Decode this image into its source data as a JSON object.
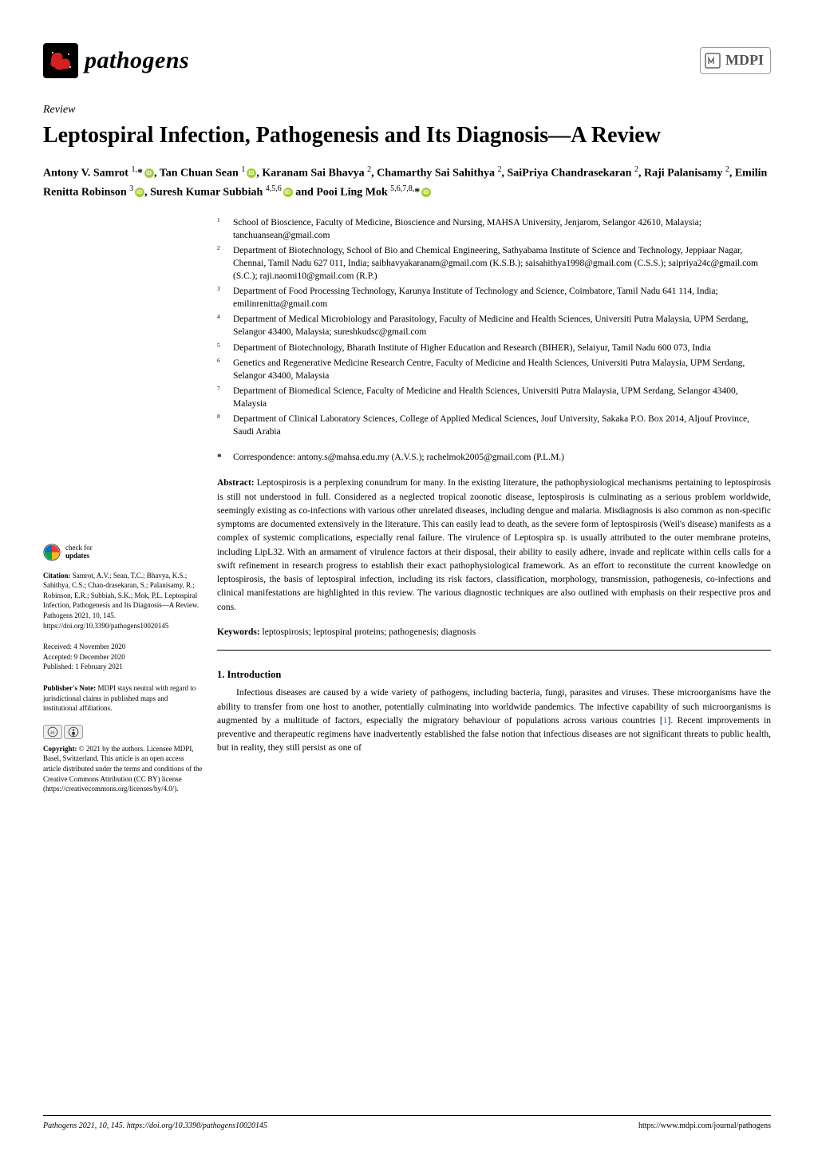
{
  "journal": {
    "name": "pathogens",
    "publisher": "MDPI"
  },
  "article": {
    "type": "Review",
    "title": "Leptospiral Infection, Pathogenesis and Its Diagnosis—A Review",
    "authors_html": "Antony V. Samrot <sup>1,</sup>*<span class='orcid'></span>, Tan Chuan Sean <sup>1</sup><span class='orcid'></span>, Karanam Sai Bhavya <sup>2</sup>, Chamarthy Sai Sahithya <sup>2</sup>, SaiPriya Chandrasekaran <sup>2</sup>, Raji Palanisamy <sup>2</sup>, Emilin Renitta Robinson <sup>3</sup><span class='orcid'></span>, Suresh Kumar Subbiah <sup>4,5,6</sup><span class='orcid'></span> and Pooi Ling Mok <sup>5,6,7,8,</sup>*<span class='orcid'></span>"
  },
  "affiliations": [
    {
      "num": "1",
      "text": "School of Bioscience, Faculty of Medicine, Bioscience and Nursing, MAHSA University, Jenjarom, Selangor 42610, Malaysia; tanchuansean@gmail.com"
    },
    {
      "num": "2",
      "text": "Department of Biotechnology, School of Bio and Chemical Engineering, Sathyabama Institute of Science and Technology, Jeppiaar Nagar, Chennai, Tamil Nadu 627 011, India; saibhavyakaranam@gmail.com (K.S.B.); saisahithya1998@gmail.com (C.S.S.); saipriya24c@gmail.com (S.C.); raji.naomi10@gmail.com (R.P.)"
    },
    {
      "num": "3",
      "text": "Department of Food Processing Technology, Karunya Institute of Technology and Science, Coimbatore, Tamil Nadu 641 114, India; emilinrenitta@gmail.com"
    },
    {
      "num": "4",
      "text": "Department of Medical Microbiology and Parasitology, Faculty of Medicine and Health Sciences, Universiti Putra Malaysia, UPM Serdang, Selangor 43400, Malaysia; sureshkudsc@gmail.com"
    },
    {
      "num": "5",
      "text": "Department of Biotechnology, Bharath Institute of Higher Education and Research (BIHER), Selaiyur, Tamil Nadu 600 073, India"
    },
    {
      "num": "6",
      "text": "Genetics and Regenerative Medicine Research Centre, Faculty of Medicine and Health Sciences, Universiti Putra Malaysia, UPM Serdang, Selangor 43400, Malaysia"
    },
    {
      "num": "7",
      "text": "Department of Biomedical Science, Faculty of Medicine and Health Sciences, Universiti Putra Malaysia, UPM Serdang, Selangor 43400, Malaysia"
    },
    {
      "num": "8",
      "text": "Department of Clinical Laboratory Sciences, College of Applied Medical Sciences, Jouf University, Sakaka P.O. Box 2014, Aljouf Province, Saudi Arabia"
    }
  ],
  "correspondence": "Correspondence: antony.s@mahsa.edu.my (A.V.S.); rachelmok2005@gmail.com (P.L.M.)",
  "abstract": {
    "label": "Abstract:",
    "text": "Leptospirosis is a perplexing conundrum for many. In the existing literature, the pathophysiological mechanisms pertaining to leptospirosis is still not understood in full. Considered as a neglected tropical zoonotic disease, leptospirosis is culminating as a serious problem worldwide, seemingly existing as co-infections with various other unrelated diseases, including dengue and malaria. Misdiagnosis is also common as non-specific symptoms are documented extensively in the literature. This can easily lead to death, as the severe form of leptospirosis (Weil's disease) manifests as a complex of systemic complications, especially renal failure. The virulence of Leptospira sp. is usually attributed to the outer membrane proteins, including LipL32. With an armament of virulence factors at their disposal, their ability to easily adhere, invade and replicate within cells calls for a swift refinement in research progress to establish their exact pathophysiological framework. As an effort to reconstitute the current knowledge on leptospirosis, the basis of leptospiral infection, including its risk factors, classification, morphology, transmission, pathogenesis, co-infections and clinical manifestations are highlighted in this review. The various diagnostic techniques are also outlined with emphasis on their respective pros and cons."
  },
  "keywords": {
    "label": "Keywords:",
    "text": "leptospirosis; leptospiral proteins; pathogenesis; diagnosis"
  },
  "section1": {
    "heading": "1. Introduction",
    "para": "Infectious diseases are caused by a wide variety of pathogens, including bacteria, fungi, parasites and viruses. These microorganisms have the ability to transfer from one host to another, potentially culminating into worldwide pandemics. The infective capability of such microorganisms is augmented by a multitude of factors, especially the migratory behaviour of populations across various countries [1]. Recent improvements in preventive and therapeutic regimens have inadvertently established the false notion that infectious diseases are not significant threats to public health, but in reality, they still persist as one of"
  },
  "sidebar": {
    "check_updates": {
      "line1": "check for",
      "line2": "updates"
    },
    "citation": {
      "label": "Citation:",
      "text": "Samrot, A.V.; Sean, T.C.; Bhavya, K.S.; Sahithya, C.S.; Chan-drasekaran, S.; Palanisamy, R.; Robinson, E.R.; Subbiah, S.K.; Mok, P.L. Leptospiral Infection, Pathogenesis and Its Diagnosis—A Review. Pathogens 2021, 10, 145. https://doi.org/10.3390/pathogens10020145"
    },
    "received": "Received: 4 November 2020",
    "accepted": "Accepted: 9 December 2020",
    "published": "Published: 1 February 2021",
    "note": {
      "label": "Publisher's Note:",
      "text": "MDPI stays neutral with regard to jurisdictional claims in published maps and institutional affiliations."
    },
    "copyright": {
      "label": "Copyright:",
      "text": "© 2021 by the authors. Licensee MDPI, Basel, Switzerland. This article is an open access article distributed under the terms and conditions of the Creative Commons Attribution (CC BY) license (https://creativecommons.org/licenses/by/4.0/)."
    }
  },
  "footer": {
    "left": "Pathogens 2021, 10, 145. https://doi.org/10.3390/pathogens10020145",
    "right": "https://www.mdpi.com/journal/pathogens"
  },
  "colors": {
    "text": "#000000",
    "link": "#0066cc",
    "orcid": "#A6CE39",
    "mdpi_border": "#999999",
    "background": "#ffffff"
  },
  "typography": {
    "title_fontsize": 28,
    "body_fontsize": 11.5,
    "sidebar_fontsize": 9,
    "journal_fontsize": 30
  }
}
